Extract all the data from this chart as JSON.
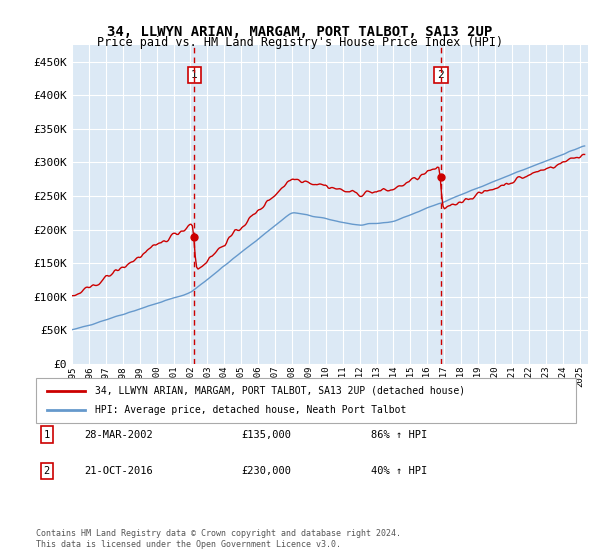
{
  "title": "34, LLWYN ARIAN, MARGAM, PORT TALBOT, SA13 2UP",
  "subtitle": "Price paid vs. HM Land Registry's House Price Index (HPI)",
  "xlabel": "",
  "ylabel": "",
  "background_color": "#dce9f5",
  "plot_bg_color": "#dce9f5",
  "red_line_color": "#cc0000",
  "blue_line_color": "#6699cc",
  "vline_color": "#cc0000",
  "legend_label_red": "34, LLWYN ARIAN, MARGAM, PORT TALBOT, SA13 2UP (detached house)",
  "legend_label_blue": "HPI: Average price, detached house, Neath Port Talbot",
  "sale1_date_num": 2002.23,
  "sale1_label": "1",
  "sale1_price": 135000,
  "sale2_date_num": 2016.8,
  "sale2_label": "2",
  "sale2_price": 230000,
  "annotation1": "28-MAR-2002",
  "annotation1_price": "£135,000",
  "annotation1_hpi": "86% ↑ HPI",
  "annotation2": "21-OCT-2016",
  "annotation2_price": "£230,000",
  "annotation2_hpi": "40% ↑ HPI",
  "footer": "Contains HM Land Registry data © Crown copyright and database right 2024.\nThis data is licensed under the Open Government Licence v3.0.",
  "ylim": [
    0,
    475000
  ],
  "yticks": [
    0,
    50000,
    100000,
    150000,
    200000,
    250000,
    300000,
    350000,
    400000,
    450000
  ],
  "xlim": [
    1995.0,
    2025.5
  ]
}
